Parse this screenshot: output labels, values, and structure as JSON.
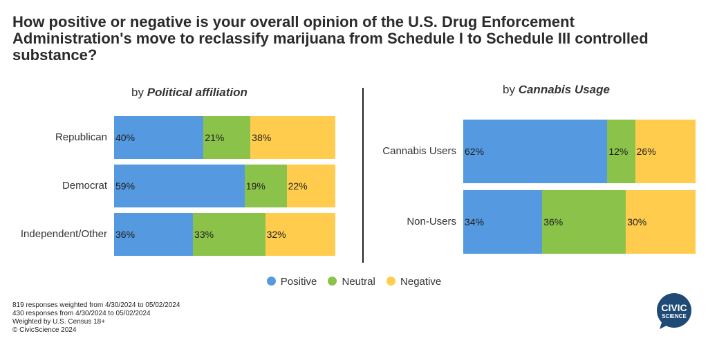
{
  "title": "How positive or negative is your overall opinion of the U.S. Drug Enforcement Administration's move to reclassify marijuana from Schedule I to Schedule III controlled substance?",
  "colors": {
    "positive": "#5599e0",
    "neutral": "#8bc34a",
    "negative": "#ffcc4d"
  },
  "legend": [
    "Positive",
    "Neutral",
    "Negative"
  ],
  "chart_data": [
    {
      "type": "bar",
      "orientation": "horizontal",
      "stacked": true,
      "subtitle_prefix": "by",
      "subtitle_emph": "Political affiliation",
      "categories": [
        "Republican",
        "Democrat",
        "Independent/Other"
      ],
      "series": [
        {
          "name": "Positive",
          "values": [
            40,
            59,
            36
          ]
        },
        {
          "name": "Neutral",
          "values": [
            21,
            19,
            33
          ]
        },
        {
          "name": "Negative",
          "values": [
            38,
            22,
            32
          ]
        }
      ],
      "value_labels": [
        [
          "40%",
          "21%",
          "38%"
        ],
        [
          "59%",
          "19%",
          "22%"
        ],
        [
          "36%",
          "33%",
          "32%"
        ]
      ]
    },
    {
      "type": "bar",
      "orientation": "horizontal",
      "stacked": true,
      "subtitle_prefix": "by",
      "subtitle_emph": "Cannabis Usage",
      "categories": [
        "Cannabis Users",
        "Non-Users"
      ],
      "series": [
        {
          "name": "Positive",
          "values": [
            62,
            34
          ]
        },
        {
          "name": "Neutral",
          "values": [
            12,
            36
          ]
        },
        {
          "name": "Negative",
          "values": [
            26,
            30
          ]
        }
      ],
      "value_labels": [
        [
          "62%",
          "12%",
          "26%"
        ],
        [
          "34%",
          "36%",
          "30%"
        ]
      ]
    }
  ],
  "footer": [
    "819 responses weighted from 4/30/2024 to 05/02/2024",
    "430 responses from 4/30/2024 to 05/02/2024",
    "Weighted by U.S. Census 18+",
    "© CivicScience 2024"
  ],
  "logo": {
    "line1": "CIVIC",
    "line2": "SCIENCE",
    "color": "#1f4a75"
  }
}
